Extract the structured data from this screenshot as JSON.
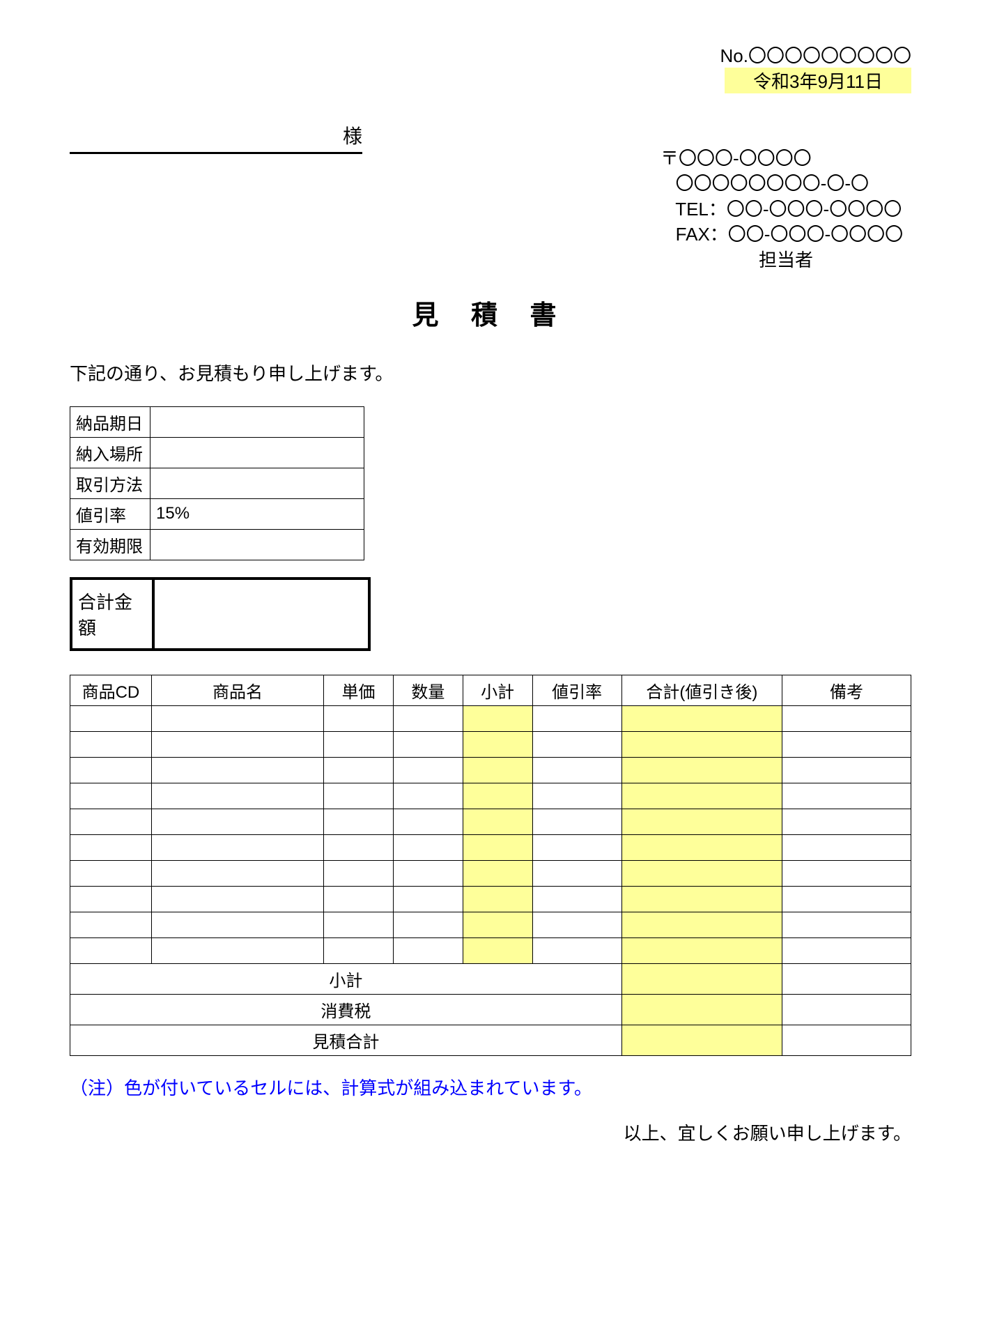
{
  "header": {
    "no_label": "No.〇〇〇〇〇〇〇〇〇",
    "date": "令和3年9月11日"
  },
  "recipient": {
    "suffix": "様"
  },
  "sender": {
    "postal": "〒〇〇〇-〇〇〇〇",
    "address": "   〇〇〇〇〇〇〇〇-〇-〇",
    "tel": "   TEL：〇〇-〇〇〇-〇〇〇〇",
    "fax": "   FAX：〇〇-〇〇〇-〇〇〇〇",
    "contact_label": "担当者"
  },
  "title": "見 積 書",
  "greeting": "下記の通り、お見積もり申し上げます。",
  "info": {
    "rows": [
      {
        "label": "納品期日",
        "value": ""
      },
      {
        "label": "納入場所",
        "value": ""
      },
      {
        "label": "取引方法",
        "value": ""
      },
      {
        "label": "値引率",
        "value": "15%"
      },
      {
        "label": "有効期限",
        "value": ""
      }
    ]
  },
  "total": {
    "label": "合計金額",
    "value": ""
  },
  "items": {
    "headers": {
      "cd": "商品CD",
      "name": "商品名",
      "price": "単価",
      "qty": "数量",
      "subtotal": "小計",
      "discount": "値引率",
      "total": "合計(値引き後)",
      "note": "備考"
    },
    "row_count": 10,
    "summary": {
      "subtotal": "小計",
      "tax": "消費税",
      "grand_total": "見積合計"
    }
  },
  "footnote": "（注）色が付いているセルには、計算式が組み込まれています。",
  "closing": "以上、宜しくお願い申し上げます。",
  "styling": {
    "highlight_color": "#feff9a",
    "border_color": "#000000",
    "body_font_size": 26,
    "title_font_size": 38,
    "note_color": "#0000ff",
    "column_widths": {
      "cd": 90,
      "name": 205,
      "price": 75,
      "qty": 75,
      "subtotal": 75,
      "discount": 100,
      "total": 190,
      "note": 150
    }
  }
}
